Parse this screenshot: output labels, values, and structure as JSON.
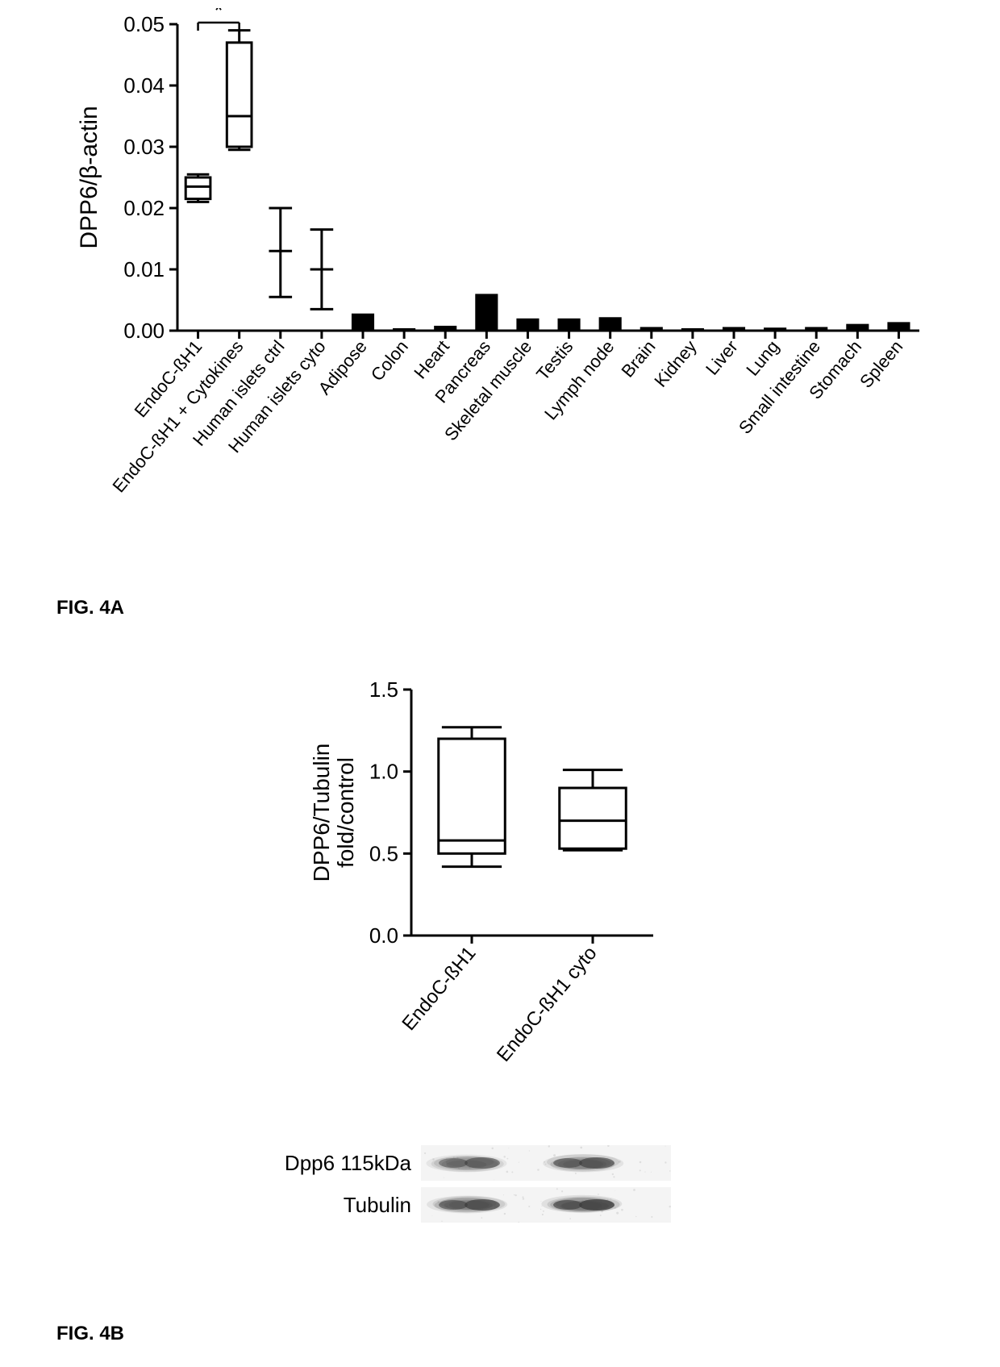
{
  "figA": {
    "label": "FIG. 4A",
    "ylabel": "DPP6/β-actin",
    "ylim": [
      0,
      0.05
    ],
    "ytick_step": 0.01,
    "yticks_labels": [
      "0.00",
      "0.01",
      "0.02",
      "0.03",
      "0.04",
      "0.05"
    ],
    "significance_marker": "*",
    "axis_color": "#000000",
    "axis_width": 3,
    "tick_fontsize": 26,
    "label_fontsize": 30,
    "category_fontsize": 22,
    "bar_color": "#000000",
    "box_stroke": "#000000",
    "box_fill": "#ffffff",
    "box_linewidth": 3,
    "whisker_width": 3,
    "categories": [
      "EndoC-ßH1",
      "EndoC-ßH1 + Cytokines",
      "Human islets ctrl",
      "Human islets cyto",
      "Adipose",
      "Colon",
      "Heart",
      "Pancreas",
      "Skeletal muscle",
      "Testis",
      "Lymph node",
      "Brain",
      "Kidney",
      "Liver",
      "Lung",
      "Small intestine",
      "Stomach",
      "Spleen"
    ],
    "items": [
      {
        "type": "box",
        "min": 0.021,
        "q1": 0.0215,
        "median": 0.0235,
        "q3": 0.025,
        "max": 0.0255
      },
      {
        "type": "box",
        "min": 0.0295,
        "q1": 0.03,
        "median": 0.035,
        "q3": 0.047,
        "max": 0.049
      },
      {
        "type": "whisker",
        "min": 0.0055,
        "median": 0.013,
        "max": 0.02
      },
      {
        "type": "whisker",
        "min": 0.0035,
        "median": 0.01,
        "max": 0.0165
      },
      {
        "type": "bar",
        "value": 0.0028
      },
      {
        "type": "bar",
        "value": 0.0004
      },
      {
        "type": "bar",
        "value": 0.0008
      },
      {
        "type": "bar",
        "value": 0.006
      },
      {
        "type": "bar",
        "value": 0.002
      },
      {
        "type": "bar",
        "value": 0.002
      },
      {
        "type": "bar",
        "value": 0.0022
      },
      {
        "type": "bar",
        "value": 0.0006
      },
      {
        "type": "bar",
        "value": 0.0004
      },
      {
        "type": "bar",
        "value": 0.0006
      },
      {
        "type": "bar",
        "value": 0.0005
      },
      {
        "type": "bar",
        "value": 0.0006
      },
      {
        "type": "bar",
        "value": 0.0011
      },
      {
        "type": "bar",
        "value": 0.0014
      }
    ]
  },
  "figB": {
    "label": "FIG. 4B",
    "ylabel_line1": "DPP6/Tubulin",
    "ylabel_line2": "fold/control",
    "ylim": [
      0,
      1.5
    ],
    "ytick_step": 0.5,
    "yticks_labels": [
      "0.0",
      "0.5",
      "1.0",
      "1.5"
    ],
    "axis_color": "#000000",
    "axis_width": 3,
    "tick_fontsize": 26,
    "label_fontsize": 28,
    "category_fontsize": 24,
    "box_stroke": "#000000",
    "box_fill": "#ffffff",
    "box_linewidth": 3,
    "categories": [
      "EndoC-ßH1",
      "EndoC-ßH1 cyto"
    ],
    "items": [
      {
        "type": "box",
        "min": 0.42,
        "q1": 0.5,
        "median": 0.58,
        "q3": 1.2,
        "max": 1.27
      },
      {
        "type": "box",
        "min": 0.52,
        "q1": 0.53,
        "median": 0.7,
        "q3": 0.9,
        "max": 1.01
      }
    ],
    "blot_labels": [
      "Dpp6 115kDa",
      "Tubulin"
    ],
    "blot_band_color": "#6b6b6b",
    "blot_bg": "#f4f4f4"
  }
}
